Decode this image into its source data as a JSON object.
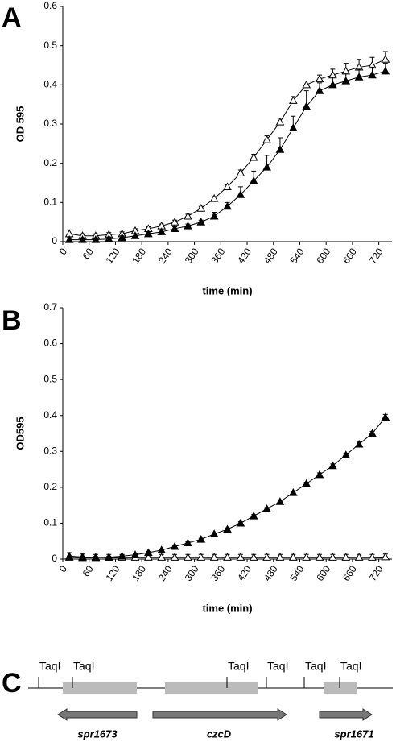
{
  "chart_data": [
    {
      "type": "line",
      "panel": "A",
      "ylabel": "OD 595",
      "xlabel": "time (min)",
      "x": [
        15,
        45,
        75,
        105,
        135,
        165,
        195,
        225,
        255,
        285,
        315,
        345,
        375,
        405,
        435,
        465,
        495,
        525,
        555,
        585,
        615,
        645,
        675,
        705,
        735
      ],
      "xlim": [
        0,
        750
      ],
      "xticks": [
        0,
        60,
        120,
        180,
        240,
        300,
        360,
        420,
        480,
        540,
        600,
        660,
        720
      ],
      "ylim": [
        0,
        0.6
      ],
      "yticks": [
        0,
        0.1,
        0.2,
        0.3,
        0.4,
        0.5,
        0.6
      ],
      "series": [
        {
          "marker": "open",
          "color": "#000000",
          "values": [
            0.02,
            0.015,
            0.015,
            0.018,
            0.02,
            0.028,
            0.033,
            0.04,
            0.05,
            0.065,
            0.085,
            0.11,
            0.14,
            0.175,
            0.215,
            0.26,
            0.305,
            0.36,
            0.4,
            0.415,
            0.425,
            0.435,
            0.445,
            0.45,
            0.465
          ],
          "errors": [
            0.01,
            0.005,
            0.005,
            0.005,
            0.005,
            0.005,
            0.005,
            0.005,
            0.005,
            0.005,
            0.005,
            0.005,
            0.005,
            0.008,
            0.008,
            0.01,
            0.01,
            0.01,
            0.01,
            0.01,
            0.015,
            0.02,
            0.02,
            0.02,
            0.02
          ]
        },
        {
          "marker": "filled",
          "color": "#000000",
          "values": [
            0.005,
            0.005,
            0.005,
            0.007,
            0.01,
            0.015,
            0.02,
            0.025,
            0.033,
            0.04,
            0.05,
            0.065,
            0.09,
            0.12,
            0.155,
            0.19,
            0.235,
            0.29,
            0.345,
            0.385,
            0.4,
            0.41,
            0.42,
            0.425,
            0.435
          ],
          "errors": [
            0.005,
            0.005,
            0.005,
            0.005,
            0.005,
            0.005,
            0.005,
            0.005,
            0.005,
            0.005,
            0.005,
            0.01,
            0.01,
            0.02,
            0.025,
            0.03,
            0.03,
            0.03,
            0.04,
            0.02,
            0.02,
            0.02,
            0.02,
            0.02,
            0.02
          ]
        }
      ]
    },
    {
      "type": "line",
      "panel": "B",
      "ylabel": "OD595",
      "xlabel": "time (min)",
      "x": [
        15,
        45,
        75,
        105,
        135,
        165,
        195,
        225,
        255,
        285,
        315,
        345,
        375,
        405,
        435,
        465,
        495,
        525,
        555,
        585,
        615,
        645,
        675,
        705,
        735
      ],
      "xlim": [
        0,
        750
      ],
      "xticks": [
        0,
        60,
        120,
        180,
        240,
        300,
        360,
        420,
        480,
        540,
        600,
        660,
        720
      ],
      "ylim": [
        0,
        0.7
      ],
      "yticks": [
        0,
        0.1,
        0.2,
        0.3,
        0.4,
        0.5,
        0.6,
        0.7
      ],
      "series": [
        {
          "marker": "open",
          "color": "#000000",
          "values": [
            0.008,
            0.006,
            0.005,
            0.005,
            0.005,
            0.005,
            0.005,
            0.005,
            0.005,
            0.005,
            0.005,
            0.005,
            0.005,
            0.005,
            0.005,
            0.005,
            0.005,
            0.005,
            0.005,
            0.005,
            0.005,
            0.005,
            0.005,
            0.005,
            0.006
          ],
          "errors": [
            0.01,
            0.008,
            0.008,
            0.008,
            0.008,
            0.008,
            0.008,
            0.008,
            0.008,
            0.008,
            0.008,
            0.008,
            0.008,
            0.008,
            0.008,
            0.008,
            0.008,
            0.008,
            0.008,
            0.008,
            0.008,
            0.008,
            0.008,
            0.008,
            0.008
          ]
        },
        {
          "marker": "filled",
          "color": "#000000",
          "values": [
            0.005,
            0.004,
            0.004,
            0.005,
            0.008,
            0.012,
            0.018,
            0.025,
            0.035,
            0.045,
            0.055,
            0.07,
            0.083,
            0.1,
            0.12,
            0.14,
            0.16,
            0.185,
            0.21,
            0.235,
            0.26,
            0.29,
            0.32,
            0.35,
            0.395
          ],
          "errors": [
            0.004,
            0.003,
            0.003,
            0.003,
            0.003,
            0.003,
            0.003,
            0.003,
            0.003,
            0.003,
            0.003,
            0.003,
            0.004,
            0.004,
            0.004,
            0.004,
            0.004,
            0.004,
            0.004,
            0.005,
            0.005,
            0.005,
            0.006,
            0.006,
            0.008
          ]
        }
      ]
    }
  ],
  "diagram": {
    "panel": "C",
    "sites": [
      "TaqI",
      "TaqI",
      "TaqI",
      "TaqI",
      "TaqI",
      "TaqI"
    ],
    "genes": [
      "spr1673",
      "czcD",
      "spr1671"
    ]
  }
}
